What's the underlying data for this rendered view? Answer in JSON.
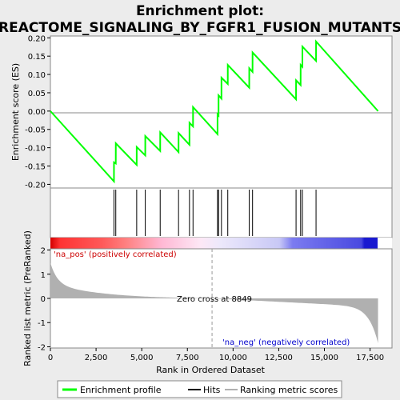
{
  "chart_data": {
    "type": "line",
    "title": "Enrichment plot:",
    "subtitle": "REACTOME_SIGNALING_BY_FGFR1_FUSION_MUTANTS",
    "xlabel": "Rank in Ordered Dataset",
    "ylabel_top": "Enrichment score (ES)",
    "ylabel_bottom": "Ranked list metric (PreRanked)",
    "xlim": [
      0,
      18700
    ],
    "ylim_top": [
      -0.21,
      0.205
    ],
    "ylim_bottom": [
      -2.05,
      2.05
    ],
    "x_ticks": [
      0,
      2500,
      5000,
      7500,
      10000,
      12500,
      15000,
      17500
    ],
    "x_tick_labels": [
      "0",
      "2,500",
      "5,000",
      "7,500",
      "10,000",
      "12,500",
      "15,000",
      "17,500"
    ],
    "y_ticks_top": [
      -0.2,
      -0.15,
      -0.1,
      -0.05,
      0.0,
      0.05,
      0.1,
      0.15,
      0.2
    ],
    "y_tick_labels_top": [
      "-0.20",
      "-0.15",
      "-0.10",
      "-0.05",
      "0.00",
      "0.05",
      "0.10",
      "0.15",
      "0.20"
    ],
    "y_ticks_bottom": [
      -2,
      -1,
      0,
      1,
      2
    ],
    "y_tick_labels_bottom": [
      "-2",
      "-1",
      "0",
      "1",
      "2"
    ],
    "n_genes": 17936,
    "zero_cross": 8849,
    "hits": [
      3479,
      3579,
      4724,
      5193,
      6010,
      7015,
      7613,
      7808,
      9150,
      9204,
      9364,
      9710,
      10885,
      11066,
      13448,
      13698,
      13795,
      14542
    ],
    "series": [
      {
        "name": "Enrichment profile",
        "color": "#00ff00",
        "x": [
          0,
          3479,
          3480,
          3579,
          3580,
          4724,
          4725,
          5193,
          5194,
          6010,
          6011,
          7015,
          7016,
          7613,
          7614,
          7808,
          7809,
          9149,
          9150,
          9204,
          9205,
          9364,
          9365,
          9710,
          9711,
          10885,
          10886,
          11066,
          11067,
          13448,
          13449,
          13698,
          13699,
          13795,
          13796,
          14542,
          14543,
          17936
        ],
        "y": [
          0.0,
          -0.192,
          -0.14,
          -0.143,
          -0.088,
          -0.147,
          -0.098,
          -0.121,
          -0.068,
          -0.109,
          -0.058,
          -0.112,
          -0.06,
          -0.092,
          -0.032,
          -0.042,
          0.011,
          -0.063,
          -0.009,
          -0.012,
          0.043,
          0.034,
          0.091,
          0.074,
          0.126,
          0.064,
          0.117,
          0.107,
          0.16,
          0.032,
          0.084,
          0.071,
          0.126,
          0.121,
          0.176,
          0.137,
          0.19,
          0.0
        ]
      }
    ],
    "legend": [
      "Enrichment profile",
      "Hits",
      "Ranking metric scores"
    ],
    "annotations": {
      "pos_label": "'na_pos' (positively correlated)",
      "neg_label": "'na_neg' (negatively correlated)",
      "zero_cross_label": "Zero cross at 8849"
    },
    "colors": {
      "es_line": "#00ff00",
      "hits": "#000000",
      "metric_fill": "#b0b0b0",
      "pos_text": "#cc0000",
      "neg_text": "#0000cc",
      "background": "#ececec"
    }
  }
}
